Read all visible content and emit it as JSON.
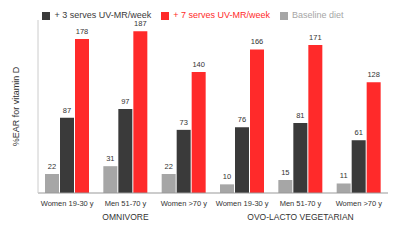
{
  "chart_data": {
    "type": "bar",
    "y_label": "%EAR for vitamin D",
    "categories": [
      "Women 19-30 y",
      "Men 51-70 y",
      "Women >70 y",
      "Women 19-30 y",
      "Men 51-70 y",
      "Women >70 y"
    ],
    "annotations": [
      "OMNIVORE",
      "OVO-LACTO VEGETARIAN"
    ],
    "series": [
      {
        "name": "Baseline diet",
        "color": "#a6a6a6",
        "values": [
          22,
          31,
          22,
          10,
          15,
          11
        ]
      },
      {
        "name": "+ 3 serves UV-MR/week",
        "color": "#3a3a3a",
        "values": [
          87,
          97,
          73,
          76,
          81,
          61
        ]
      },
      {
        "name": "+ 7 serves UV-MR/week",
        "color": "#ff2a2a",
        "values": [
          178,
          187,
          140,
          166,
          171,
          128
        ]
      }
    ],
    "ylim": [
      0,
      200
    ],
    "yticks": [
      0,
      50,
      100,
      150,
      200
    ],
    "grid": false,
    "legend": "top",
    "data_labels": true,
    "tick_labels": "x"
  }
}
